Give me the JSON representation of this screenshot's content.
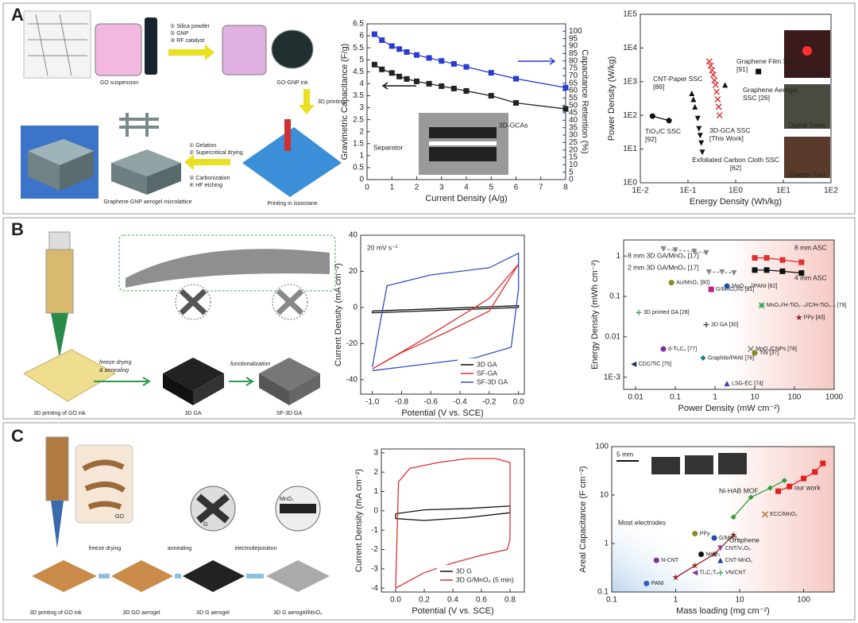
{
  "panels": [
    "A",
    "B",
    "C"
  ],
  "schematics": {
    "A": [
      "GO suspension",
      "① Silica powder",
      "② GNP",
      "③ RF catalyst",
      "GO-GNP ink",
      "3D printing",
      "Printing in isooctane",
      "① Gelation",
      "② Supercritical drying",
      "③ Carbonization",
      "④ HF etching",
      "Graphene-GNP aerogel microlattice"
    ],
    "B": [
      "3D printing of GO ink",
      "freeze drying",
      "& annealing",
      "3D GA",
      "functionalization",
      "SF-3D GA"
    ],
    "C": [
      "3D printing of GO ink",
      "freeze drying",
      "annealing",
      "electrodeposition",
      "3D GO aerogel",
      "3D G aerogel",
      "3D G aerogel/MnO₂",
      "GO",
      "G",
      "MnO₂"
    ]
  },
  "chart_data": [
    {
      "type": "line",
      "xlabel": "Current Density (A/g)",
      "ylabel": "Gravimetric Capacitance (F/g)",
      "y2label": "Capacitance Retention (%)",
      "x": [
        0.3,
        0.6,
        1,
        1.3,
        1.6,
        2,
        2.5,
        3,
        3.5,
        4,
        5,
        6,
        8
      ],
      "series": [
        {
          "color": "#222222",
          "marker": "square",
          "values": [
            4.8,
            4.6,
            4.45,
            4.3,
            4.2,
            4.1,
            4.0,
            3.9,
            3.8,
            3.7,
            3.5,
            3.2,
            2.95
          ]
        },
        {
          "color": "#2a3bd0",
          "marker": "square",
          "axis": "y2",
          "values": [
            98,
            94,
            90,
            88,
            86,
            84,
            82,
            80,
            78,
            76,
            72,
            68,
            62
          ]
        }
      ],
      "xlim": [
        0,
        8
      ],
      "xticks": [
        0,
        1,
        2,
        3,
        4,
        5,
        6,
        7,
        8
      ],
      "ylim": [
        0,
        6.5
      ],
      "yticks": [
        0,
        0.5,
        1,
        1.5,
        2,
        2.5,
        3,
        3.5,
        4,
        4.5,
        5,
        5.5,
        6,
        6.5
      ],
      "y2lim": [
        0,
        105
      ],
      "y2ticks": [
        0,
        5,
        10,
        15,
        20,
        25,
        30,
        35,
        40,
        45,
        50,
        55,
        60,
        65,
        70,
        75,
        80,
        85,
        90,
        95,
        100
      ],
      "annotations": [
        "3D-GCAs",
        "Separator"
      ]
    },
    {
      "type": "scatter",
      "xlabel": "Energy Density (Wh/kg)",
      "ylabel": "Power Density (W/kg)",
      "xlog": true,
      "ylog": true,
      "legend": "inline",
      "xlim": [
        0.01,
        100
      ],
      "xticks": [
        {
          "value": 0.01,
          "label": "1E-2"
        },
        {
          "value": 0.1,
          "label": "1E-1"
        },
        {
          "value": 1,
          "label": "1E0"
        },
        {
          "value": 10,
          "label": "1E1"
        },
        {
          "value": 100,
          "label": "1E2"
        }
      ],
      "ylim": [
        1,
        100000
      ],
      "yticks": [
        {
          "value": 1,
          "label": "1E0"
        },
        {
          "value": 10,
          "label": "1E1"
        },
        {
          "value": 100,
          "label": "1E2"
        },
        {
          "value": 1000,
          "label": "1E3"
        },
        {
          "value": 10000,
          "label": "1E4"
        },
        {
          "value": 100000,
          "label": "1E5"
        }
      ],
      "series": [
        {
          "name": "TiO₂/C SSC\n[92]",
          "color": "#111111",
          "marker": "circle",
          "line": true,
          "x": [
            0.018,
            0.04
          ],
          "values": [
            95,
            70
          ]
        },
        {
          "name": "CNT-Paper SSC\n[86]",
          "color": "#111111",
          "marker": "triangle",
          "line": false,
          "x": [
            0.12,
            0.13,
            0.14
          ],
          "values": [
            450,
            300,
            180
          ]
        },
        {
          "name": "Exfoliated Carbon Cloth SSC\n[62]",
          "color": "#111111",
          "marker": "tri-down",
          "line": false,
          "x": [
            0.16,
            0.17,
            0.18,
            0.19,
            0.2
          ],
          "values": [
            80,
            40,
            25,
            15,
            8
          ]
        },
        {
          "name": "Graphene Film SSC\n[91]",
          "color": "#111111",
          "marker": "square",
          "line": false,
          "x": [
            3
          ],
          "values": [
            2000
          ]
        },
        {
          "name": "Graphene Aerogel\nSSC [26]",
          "color": "#111111",
          "marker": "triangle",
          "line": false,
          "x": [
            0.6
          ],
          "values": [
            800
          ]
        },
        {
          "name": "3D-GCA SSC\n[This Work]",
          "color": "#e02020",
          "marker": "x",
          "line": false,
          "x": [
            0.28,
            0.3,
            0.32,
            0.34,
            0.36,
            0.38,
            0.4,
            0.42,
            0.44,
            0.46
          ],
          "values": [
            4000,
            3000,
            2200,
            1600,
            1100,
            800,
            500,
            300,
            180,
            100
          ]
        }
      ],
      "annotations": [
        "Red LED Bulb",
        "Digital Timer",
        "Electric Fan"
      ]
    },
    {
      "type": "line",
      "xlabel": "Potential (V vs. SCE)",
      "ylabel": "Current Density (mA cm⁻²)",
      "legend": "lower right",
      "xlim": [
        -1.08,
        0.04
      ],
      "xticks": [
        {
          "value": -1,
          "label": "-1.0"
        },
        {
          "value": -0.8,
          "label": "-0.8"
        },
        {
          "value": -0.6,
          "label": "-0.6"
        },
        {
          "value": -0.4,
          "label": "-0.4"
        },
        {
          "value": -0.2,
          "label": "-0.2"
        },
        {
          "value": 0,
          "label": "0.0"
        }
      ],
      "ylim": [
        -48,
        40
      ],
      "yticks": [
        -40,
        -20,
        0,
        20,
        40
      ],
      "series": [
        {
          "name": "3D GA",
          "color": "#111111",
          "marker": "none",
          "x": [
            -1,
            -0.5,
            0,
            0,
            -0.5,
            -1,
            -1
          ],
          "values": [
            -2,
            -0.5,
            1,
            0,
            -1.5,
            -3,
            -2
          ]
        },
        {
          "name": "SF-GA",
          "color": "#e03030",
          "marker": "none",
          "x": [
            -1,
            -0.7,
            -0.4,
            -0.2,
            0,
            -0.2,
            -0.5,
            -0.8,
            -1
          ],
          "values": [
            -34,
            -20,
            -5,
            5,
            24,
            -2,
            -14,
            -25,
            -34
          ]
        },
        {
          "name": "SF-3D GA",
          "color": "#3050c0",
          "marker": "none",
          "x": [
            -1,
            -0.95,
            -0.9,
            -0.6,
            -0.2,
            0,
            0,
            -0.05,
            -0.3,
            -0.7,
            -1
          ],
          "values": [
            -33,
            -10,
            12,
            18,
            22,
            30,
            10,
            -22,
            -28,
            -32,
            -35
          ]
        }
      ],
      "annotations": [
        "20 mV s⁻¹"
      ]
    },
    {
      "type": "scatter",
      "xlabel": "Power Density (mW cm⁻²)",
      "ylabel": "Energy Density (mWh cm⁻²)",
      "xlog": true,
      "ylog": true,
      "legend": "inline",
      "xlim": [
        0.005,
        1000
      ],
      "xticks": [
        0.01,
        0.1,
        1,
        10,
        100,
        1000
      ],
      "ylim": [
        0.0005,
        2.5
      ],
      "yticks": [
        {
          "value": 0.001,
          "label": "1E-3"
        },
        0.01,
        0.1,
        1
      ],
      "series": [
        {
          "name": "8 mm ASC",
          "color": "#e03030",
          "marker": "square",
          "line": true,
          "x": [
            10,
            20,
            50,
            150
          ],
          "values": [
            0.9,
            0.9,
            0.8,
            0.7
          ]
        },
        {
          "name": "4 mm ASC",
          "color": "#111111",
          "marker": "square",
          "line": true,
          "x": [
            10,
            20,
            50,
            150
          ],
          "values": [
            0.45,
            0.45,
            0.42,
            0.38
          ]
        },
        {
          "name": "8 mm 3D GA/MnO₂ [17]",
          "color": "#888888",
          "marker": "tri-down",
          "line": true,
          "dash": true,
          "x": [
            0.05,
            0.1,
            0.3,
            0.6
          ],
          "values": [
            1.5,
            1.4,
            1.3,
            1.2
          ]
        },
        {
          "name": "2 mm 3D GA/MnO₂ [17]",
          "color": "#888888",
          "marker": "tri-down",
          "line": true,
          "dash": true,
          "x": [
            0.7,
            1.5,
            3
          ],
          "values": [
            0.4,
            0.4,
            0.38
          ]
        }
      ],
      "points": [
        {
          "label": "Au/MnO₂ [80]",
          "x": 0.08,
          "y": 0.22,
          "color": "#8a8a20",
          "marker": "circle"
        },
        {
          "label": "G/MnO₂//G [81]",
          "x": 0.8,
          "y": 0.15,
          "color": "#c02080",
          "marker": "square"
        },
        {
          "label": "MoO₃₋ₓ//PANI [82]",
          "x": 2,
          "y": 0.18,
          "color": "#2050a0",
          "marker": "circle"
        },
        {
          "label": "MnO₂//H-TiO₂₋ₓ//C/H-TiO₂₋ₓ [79]",
          "x": 15,
          "y": 0.06,
          "color": "#30a050",
          "marker": "asterisk"
        },
        {
          "label": "3D printed GA [28]",
          "x": 0.012,
          "y": 0.04,
          "color": "#30a050",
          "marker": "plus"
        },
        {
          "label": "3D GA [30]",
          "x": 0.6,
          "y": 0.02,
          "color": "#444444",
          "marker": "plus"
        },
        {
          "label": "PPy [40]",
          "x": 130,
          "y": 0.03,
          "color": "#902020",
          "marker": "star"
        },
        {
          "label": "MnO₂/CNPs [78]",
          "x": 8,
          "y": 0.005,
          "color": "#777777",
          "marker": "x"
        },
        {
          "label": "d-Ti₃C₂ [77]",
          "x": 0.05,
          "y": 0.005,
          "color": "#8030a0",
          "marker": "circle"
        },
        {
          "label": "TiN [37]",
          "x": 10,
          "y": 0.004,
          "color": "#8a8a20",
          "marker": "circle"
        },
        {
          "label": "Graphite/PANI [76]",
          "x": 0.5,
          "y": 0.003,
          "color": "#208080",
          "marker": "diamond"
        },
        {
          "label": "CDC/TiC [75]",
          "x": 0.009,
          "y": 0.0021,
          "color": "#203060",
          "marker": "tri-left"
        },
        {
          "label": "LSG-EC [74]",
          "x": 2,
          "y": 0.0007,
          "color": "#4040c0",
          "marker": "triangle"
        }
      ]
    },
    {
      "type": "line",
      "xlabel": "Potential (V vs. SCE)",
      "ylabel": "Current Density (mA cm⁻²)",
      "legend": "lower right",
      "xlim": [
        -0.1,
        0.9
      ],
      "xticks": [
        {
          "value": 0,
          "label": "0.0"
        },
        {
          "value": 0.2,
          "label": "0.2"
        },
        {
          "value": 0.4,
          "label": "0.4"
        },
        {
          "value": 0.6,
          "label": "0.6"
        },
        {
          "value": 0.8,
          "label": "0.8"
        }
      ],
      "ylim": [
        -4.2,
        3.2
      ],
      "yticks": [
        -4,
        -3,
        -2,
        -1,
        0,
        1,
        2,
        3
      ],
      "series": [
        {
          "name": "3D G",
          "color": "#111111",
          "marker": "none",
          "x": [
            0,
            0.2,
            0.5,
            0.8,
            0.8,
            0.5,
            0.2,
            0,
            0
          ],
          "values": [
            -0.15,
            0.05,
            0.12,
            0.25,
            -0.1,
            -0.35,
            -0.5,
            -0.4,
            -0.15
          ]
        },
        {
          "name": "3D G/MnO₂ (5 min)",
          "color": "#e03030",
          "marker": "none",
          "x": [
            0,
            0.02,
            0.1,
            0.3,
            0.5,
            0.7,
            0.8,
            0.8,
            0.78,
            0.6,
            0.4,
            0.2,
            0.05,
            0
          ],
          "values": [
            -4,
            1.5,
            2.2,
            2.5,
            2.7,
            2.7,
            2.5,
            -1.5,
            -2,
            -2.3,
            -2.7,
            -3.2,
            -3.8,
            -4
          ]
        }
      ]
    },
    {
      "type": "scatter",
      "xlabel": "Mass loading (mg cm⁻²)",
      "ylabel": "Areal Capacitance (F cm⁻²)",
      "xlog": true,
      "ylog": true,
      "legend": "inline",
      "xlim": [
        0.1,
        300
      ],
      "xticks": [
        0.1,
        1,
        10,
        100
      ],
      "ylim": [
        0.1,
        100
      ],
      "yticks": [
        0.1,
        1,
        10,
        100
      ],
      "series": [
        {
          "name": "our work",
          "color": "#e02020",
          "marker": "square",
          "line": true,
          "x": [
            40,
            60,
            100,
            150,
            200
          ],
          "values": [
            12,
            15,
            22,
            30,
            45
          ]
        },
        {
          "name": "Ni-HAB MOF",
          "color": "#30a040",
          "marker": "diamond",
          "line": true,
          "x": [
            8,
            15,
            30,
            50
          ],
          "values": [
            3.5,
            9,
            14,
            20
          ]
        },
        {
          "name": "Graphene",
          "color": "#902020",
          "marker": "star",
          "line": true,
          "x": [
            1,
            2,
            4,
            8
          ],
          "values": [
            0.2,
            0.35,
            0.6,
            1.5
          ]
        }
      ],
      "points": [
        {
          "label": "N-CNT",
          "x": 0.5,
          "y": 0.45,
          "color": "#8030a0",
          "marker": "circle"
        },
        {
          "label": "PANI",
          "x": 0.35,
          "y": 0.15,
          "color": "#3060c0",
          "marker": "circle"
        },
        {
          "label": "PPy",
          "x": 2,
          "y": 1.6,
          "color": "#8a8a20",
          "marker": "circle"
        },
        {
          "label": "G/MnO₂",
          "x": 4,
          "y": 1.3,
          "color": "#2050a0",
          "marker": "circle"
        },
        {
          "label": "MoO₃",
          "x": 2.5,
          "y": 0.6,
          "color": "#111111",
          "marker": "circle"
        },
        {
          "label": "CNT/V₂O₅",
          "x": 5,
          "y": 0.8,
          "color": "#a030a0",
          "marker": "tri-down"
        },
        {
          "label": "CNT-MnO₂",
          "x": 5,
          "y": 0.45,
          "color": "#2040a0",
          "marker": "triangle"
        },
        {
          "label": "Ti₃C₂Tₓ",
          "x": 2,
          "y": 0.25,
          "color": "#8030a0",
          "marker": "tri-left"
        },
        {
          "label": "VN/CNT",
          "x": 5,
          "y": 0.25,
          "color": "#30a050",
          "marker": "plus"
        },
        {
          "label": "ECC/MnO₂",
          "x": 25,
          "y": 4,
          "color": "#a06020",
          "marker": "x"
        }
      ],
      "annotations": [
        "Most electrodes",
        "5 mm"
      ]
    }
  ]
}
